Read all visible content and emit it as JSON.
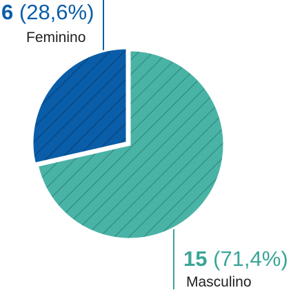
{
  "chart_data": {
    "type": "pie",
    "slices": [
      {
        "category": "Feminino",
        "count": "6",
        "percent": "(28,6%)",
        "value": 6,
        "color": "#0a5da8",
        "edge_color": "#0f4e8f",
        "hatch_color": "#083f74"
      },
      {
        "category": "Masculino",
        "count": "15",
        "percent": "(71,4%)",
        "value": 15,
        "color": "#49b3a6",
        "edge_color": "#2f8f84",
        "hatch_color": "#2d8479"
      }
    ],
    "exploded_slice": "Feminino",
    "pattern": "diagonal-hatch"
  }
}
